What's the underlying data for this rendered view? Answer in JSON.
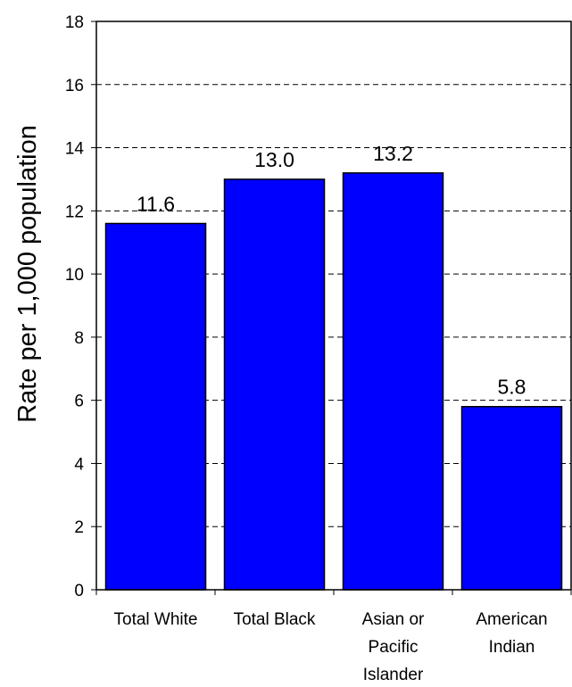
{
  "chart_data": {
    "type": "bar",
    "categories": [
      [
        "Total White"
      ],
      [
        "Total Black"
      ],
      [
        "Asian or",
        "Pacific",
        "Islander"
      ],
      [
        "American",
        "Indian"
      ]
    ],
    "values": [
      11.6,
      13.0,
      13.2,
      5.8
    ],
    "data_labels": [
      "11.6",
      "13.0",
      "13.2",
      "5.8"
    ],
    "ylabel": "Rate per 1,000 population",
    "ylim": [
      0,
      18
    ],
    "yticks": [
      0,
      2,
      4,
      6,
      8,
      10,
      12,
      14,
      16,
      18
    ],
    "grid": "dashed horizontal",
    "legend": "none",
    "colors": {
      "bar": "#0000FF",
      "bar_edge": "#000000"
    }
  }
}
